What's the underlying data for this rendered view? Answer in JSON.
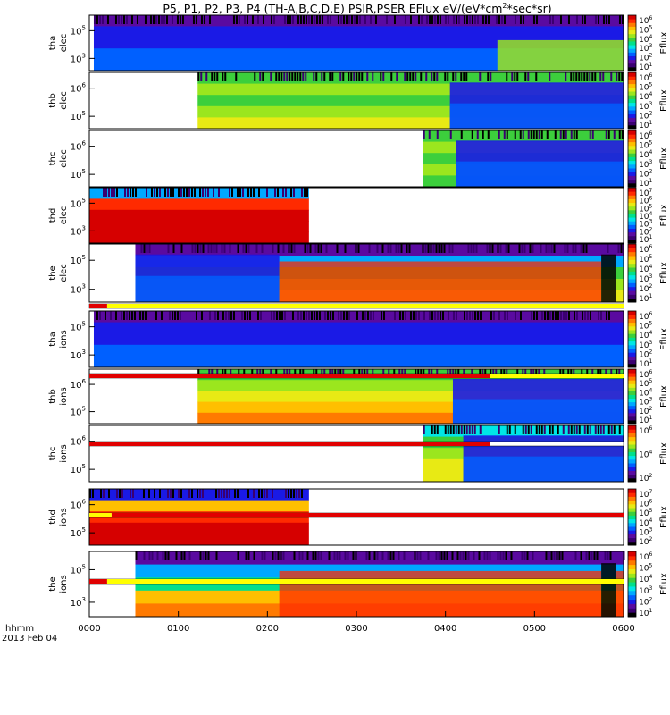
{
  "figure": {
    "title_main": "P5, P1, P2, P3, P4 (TH-A,B,C,D,E) PSIR,PSER EFlux eV/(eV*cm",
    "title_sup": "2",
    "title_end": "*sec*sr)",
    "x_ticks": [
      "0000",
      "0100",
      "0200",
      "0300",
      "0400",
      "0500",
      "0600"
    ],
    "x_label_line1": "hhmm",
    "x_label_line2": "2013 Feb 04"
  },
  "colorbar": {
    "label": "Eflux",
    "colors": [
      "#000000",
      "#3a0070",
      "#5a0aa0",
      "#1a1ae6",
      "#0060ff",
      "#00a8ff",
      "#00e6e6",
      "#00e08a",
      "#3ccf3c",
      "#9be61e",
      "#e8ea14",
      "#ffbf00",
      "#ff7a00",
      "#ff2a00",
      "#d60000"
    ]
  },
  "chart_data": {
    "type": "heatmap",
    "x_range_hhmm": [
      "0000",
      "0600"
    ],
    "y_scale": "log energy (eV)",
    "panels": [
      {
        "probe": "tha",
        "species": "elec",
        "y_ticks": [
          "10^5",
          "10^3"
        ],
        "cbar_ticks": [
          "10^6",
          "10^5",
          "10^4",
          "10^3",
          "10^2",
          "10^1"
        ],
        "data_start_hhmm": "0003",
        "data_end_hhmm": "0600",
        "colors": [
          "#5a0aa0",
          "#1a1ae6",
          "#1a1ae6",
          "#0060ff",
          "#0060ff"
        ],
        "regions": [
          {
            "from": "0003",
            "to": "0435",
            "level": "low (blue/purple)"
          },
          {
            "from": "0435",
            "to": "0600",
            "level": "green-yellow at low energy"
          }
        ]
      },
      {
        "probe": "thb",
        "species": "elec",
        "y_ticks": [
          "10^6",
          "10^5"
        ],
        "cbar_ticks": [
          "10^6",
          "10^5",
          "10^4",
          "10^3",
          "10^2",
          "10^1"
        ],
        "data_start_hhmm": "0113",
        "data_end_hhmm": "0600",
        "colors": [
          "#3ccf3c",
          "#9be61e",
          "#3ccf3c",
          "#9be61e",
          "#e8ea14"
        ],
        "regions": [
          {
            "from": "0113",
            "to": "0363",
            "level": "green"
          },
          {
            "from": "0363",
            "to": "0600",
            "level": "blue"
          }
        ]
      },
      {
        "probe": "thc",
        "species": "elec",
        "y_ticks": [
          "10^6",
          "10^5"
        ],
        "cbar_ticks": [
          "10^6",
          "10^5",
          "10^4",
          "10^3",
          "10^2",
          "10^1"
        ],
        "data_start_hhmm": "0345",
        "data_end_hhmm": "0600",
        "colors": [
          "#3ccf3c",
          "#9be61e",
          "#3ccf3c",
          "#9be61e",
          "#3ccf3c"
        ],
        "regions": [
          {
            "from": "0345",
            "to": "0367",
            "level": "green"
          },
          {
            "from": "0367",
            "to": "0600",
            "level": "blue"
          }
        ]
      },
      {
        "probe": "thd",
        "species": "elec",
        "y_ticks": [
          "10^5",
          "10^3"
        ],
        "cbar_ticks": [
          "10^7",
          "10^6",
          "10^5",
          "10^4",
          "10^3",
          "10^2",
          "10^1"
        ],
        "data_start_hhmm": "0000",
        "data_end_hhmm": "0228",
        "colors": [
          "#00a8ff",
          "#ff2a00",
          "#d60000",
          "#d60000",
          "#d60000"
        ],
        "regions": [
          {
            "from": "0000",
            "to": "0228",
            "level": "high (red)"
          }
        ]
      },
      {
        "probe": "the",
        "species": "elec",
        "y_ticks": [
          "10^5",
          "10^3"
        ],
        "cbar_ticks": [
          "10^6",
          "10^5",
          "10^4",
          "10^3",
          "10^2",
          "10^1"
        ],
        "data_start_hhmm": "0031",
        "data_end_hhmm": "0600",
        "colors": [
          "#5a0aa0",
          "#00a8ff",
          "#3ccf3c",
          "#9be61e",
          "#e8ea14"
        ],
        "regions": [
          {
            "from": "0031",
            "to": "0168",
            "level": "blue-green"
          },
          {
            "from": "0168",
            "to": "0545",
            "level": "orange-red"
          },
          {
            "from": "0545",
            "to": "0555",
            "level": "gap (black/cyan)"
          },
          {
            "from": "0555",
            "to": "0600",
            "level": "red"
          }
        ]
      },
      {
        "probe": "tha",
        "species": "ions",
        "y_ticks": [
          "10^5",
          "10^3"
        ],
        "cbar_ticks": [
          "10^6",
          "10^5",
          "10^4",
          "10^3",
          "10^2",
          "10^1"
        ],
        "data_start_hhmm": "0003",
        "data_end_hhmm": "0600",
        "colors": [
          "#5a0aa0",
          "#1a1ae6",
          "#1a1ae6",
          "#0060ff",
          "#0060ff"
        ],
        "regions": [
          {
            "from": "0003",
            "to": "0600",
            "level": "blue/purple"
          }
        ]
      },
      {
        "probe": "thb",
        "species": "ions",
        "y_ticks": [
          "10^6",
          "10^5"
        ],
        "cbar_ticks": [
          "10^6",
          "10^5",
          "10^4",
          "10^3",
          "10^2",
          "10^1"
        ],
        "data_start_hhmm": "0113",
        "data_end_hhmm": "0600",
        "colors": [
          "#3ccf3c",
          "#9be61e",
          "#e8ea14",
          "#ffbf00",
          "#ff7a00"
        ],
        "regions": [
          {
            "from": "0113",
            "to": "0365",
            "level": "green-yellow-orange"
          },
          {
            "from": "0365",
            "to": "0600",
            "level": "blue"
          }
        ]
      },
      {
        "probe": "thc",
        "species": "ions",
        "y_ticks": [
          "10^6",
          "10^5"
        ],
        "cbar_ticks": [
          "10^6",
          "10^4",
          "10^2"
        ],
        "data_start_hhmm": "0345",
        "data_end_hhmm": "0600",
        "colors": [
          "#00e6e6",
          "#3ccf3c",
          "#9be61e",
          "#e8ea14",
          "#e8ea14"
        ],
        "regions": [
          {
            "from": "0345",
            "to": "0372",
            "level": "cyan-yellow"
          },
          {
            "from": "0372",
            "to": "0600",
            "level": "blue"
          }
        ]
      },
      {
        "probe": "thd",
        "species": "ions",
        "y_ticks": [
          "10^6",
          "10^5"
        ],
        "cbar_ticks": [
          "10^7",
          "10^6",
          "10^5",
          "10^4",
          "10^3",
          "10^2"
        ],
        "data_start_hhmm": "0000",
        "data_end_hhmm": "0228",
        "colors": [
          "#1a1ae6",
          "#ffbf00",
          "#ff2a00",
          "#d60000",
          "#d60000"
        ],
        "regions": [
          {
            "from": "0000",
            "to": "0228",
            "level": "high (red)"
          }
        ]
      },
      {
        "probe": "the",
        "species": "ions",
        "y_ticks": [
          "10^5",
          "10^3"
        ],
        "cbar_ticks": [
          "10^6",
          "10^5",
          "10^4",
          "10^3",
          "10^2",
          "10^1"
        ],
        "data_start_hhmm": "0031",
        "data_end_hhmm": "0600",
        "colors": [
          "#5a0aa0",
          "#00a8ff",
          "#00e08a",
          "#ffbf00",
          "#ff7a00"
        ],
        "regions": [
          {
            "from": "0031",
            "to": "0168",
            "level": "cyan-green"
          },
          {
            "from": "0168",
            "to": "0545",
            "level": "orange-red"
          },
          {
            "from": "0545",
            "to": "0555",
            "level": "gap (black/cyan)"
          },
          {
            "from": "0555",
            "to": "0600",
            "level": "orange-red"
          }
        ]
      }
    ],
    "mode_bars": [
      {
        "segments": [
          {
            "from": "0000",
            "to": "0012",
            "color": "#e00000"
          },
          {
            "from": "0012",
            "to": "0600",
            "color": "#ffff00"
          }
        ]
      },
      {
        "segments": [
          {
            "from": "0000",
            "to": "0390",
            "color": "#e00000"
          },
          {
            "from": "0390",
            "to": "0600",
            "color": "#ffff00"
          }
        ]
      },
      {
        "segments": [
          {
            "from": "0000",
            "to": "0390",
            "color": "#e00000"
          }
        ]
      },
      {
        "segments": [
          {
            "from": "0000",
            "to": "0015",
            "color": "#ffff00"
          },
          {
            "from": "0015",
            "to": "0600",
            "color": "#e00000"
          }
        ]
      },
      {
        "segments": [
          {
            "from": "0000",
            "to": "0012",
            "color": "#e00000"
          },
          {
            "from": "0012",
            "to": "0600",
            "color": "#ffff00"
          }
        ]
      }
    ]
  }
}
